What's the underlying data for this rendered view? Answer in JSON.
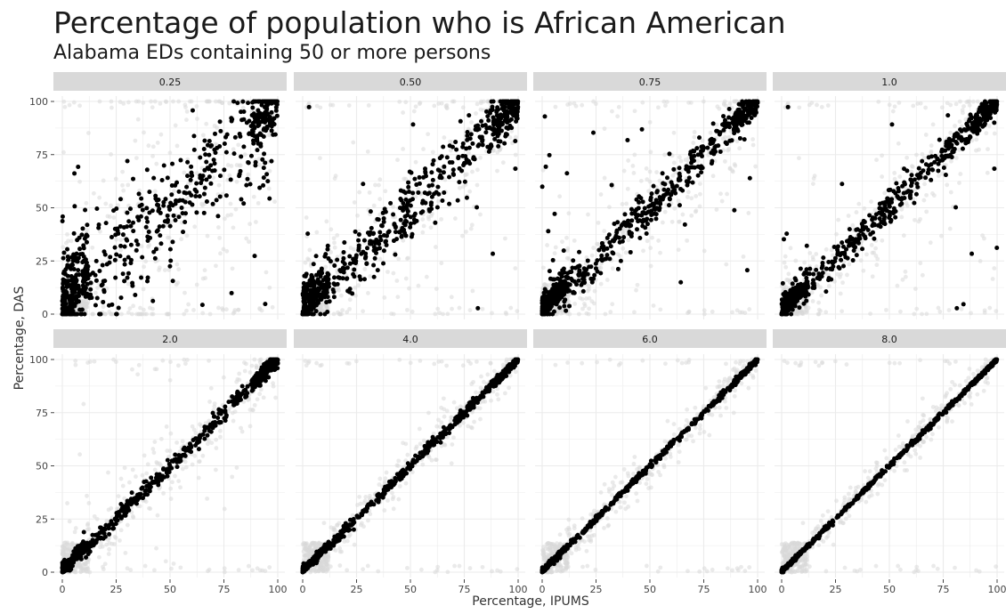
{
  "chart_data": {
    "type": "scatter",
    "title": "Percentage of population who is African American",
    "subtitle": "Alabama EDs containing 50 or more persons",
    "xlabel": "Percentage, IPUMS",
    "ylabel": "Percentage, DAS",
    "xlim": [
      0,
      100
    ],
    "ylim": [
      0,
      100
    ],
    "x_ticks": [
      0,
      25,
      50,
      75,
      100
    ],
    "y_ticks": [
      0,
      25,
      50,
      75,
      100
    ],
    "grid": true,
    "legend": "none",
    "facets": [
      {
        "label": "0.25",
        "spread": 13
      },
      {
        "label": "0.50",
        "spread": 7
      },
      {
        "label": "0.75",
        "spread": 4.5
      },
      {
        "label": "1.0",
        "spread": 3.5
      },
      {
        "label": "2.0",
        "spread": 2.0
      },
      {
        "label": "4.0",
        "spread": 1.1
      },
      {
        "label": "6.0",
        "spread": 0.7
      },
      {
        "label": "8.0",
        "spread": 0.5
      }
    ],
    "colors": {
      "foreground_points": "#000000",
      "background_points": "#d9d9d9",
      "panel_grid": "#ebebeb",
      "strip_background": "#d9d9d9"
    }
  }
}
